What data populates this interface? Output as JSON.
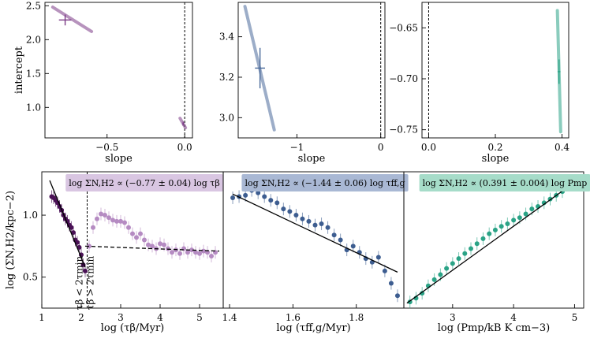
{
  "chart_data": [
    {
      "type": "scatter",
      "panel": "top-left",
      "xlabel": "slope",
      "ylabel": "intercept",
      "xlim": [
        -0.9,
        0.05
      ],
      "ylim": [
        0.55,
        2.55
      ],
      "xticks": [
        -0.5,
        0.0
      ],
      "xtick_labels": [
        "−0.5",
        "0.0"
      ],
      "yticks": [
        1.0,
        1.5,
        2.0,
        2.5
      ],
      "ytick_labels": [
        "1.0",
        "1.5",
        "2.0",
        "2.5"
      ],
      "vline": 0.0,
      "points": [
        {
          "name": "tau-beta",
          "x": -0.77,
          "y": 2.29,
          "xerr": 0.04,
          "yerr": 0.08,
          "color": "#7b3a86",
          "ellipse_line": [
            [
              -0.85,
              2.48
            ],
            [
              -0.6,
              2.12
            ]
          ]
        },
        {
          "name": "small-secondary",
          "x": -0.01,
          "y": 0.76,
          "xerr": 0.005,
          "yerr": 0.03,
          "color": "#7b3a86",
          "ellipse_line": [
            [
              -0.03,
              0.84
            ],
            [
              0.005,
              0.7
            ]
          ]
        }
      ]
    },
    {
      "type": "scatter",
      "panel": "top-middle",
      "xlabel": "slope",
      "ylabel": "",
      "xlim": [
        -1.7,
        0.05
      ],
      "ylim": [
        2.9,
        3.57
      ],
      "xticks": [
        -1,
        0
      ],
      "xtick_labels": [
        "−1",
        "0"
      ],
      "yticks": [
        3.0,
        3.2,
        3.4
      ],
      "ytick_labels": [
        "3.0",
        "3.2",
        "3.4"
      ],
      "vline": 0.0,
      "points": [
        {
          "name": "tau-ff",
          "x": -1.44,
          "y": 3.245,
          "xerr": 0.06,
          "yerr": 0.1,
          "color": "#4a6a9a",
          "ellipse_line": [
            [
              -1.62,
              3.55
            ],
            [
              -1.27,
              2.94
            ]
          ]
        }
      ]
    },
    {
      "type": "scatter",
      "panel": "top-right",
      "xlabel": "slope",
      "ylabel": "",
      "xlim": [
        -0.02,
        0.42
      ],
      "ylim": [
        -0.758,
        -0.625
      ],
      "xticks": [
        0.0,
        0.2,
        0.4
      ],
      "xtick_labels": [
        "0.0",
        "0.2",
        "0.4"
      ],
      "yticks": [
        -0.75,
        -0.7,
        -0.65
      ],
      "ytick_labels": [
        "−0.75",
        "−0.70",
        "−0.65"
      ],
      "vline": 0.0,
      "points": [
        {
          "name": "p-mp",
          "x": 0.391,
          "y": -0.693,
          "xerr": 0.004,
          "yerr": 0.012,
          "color": "#2aa386",
          "ellipse_line": [
            [
              0.386,
              -0.633
            ],
            [
              0.396,
              -0.752
            ]
          ]
        }
      ]
    },
    {
      "type": "scatter",
      "panel": "bottom-left",
      "xlabel": "log (τβ/Myr)",
      "ylabel": "log (ΣN,H2/kpc−2)",
      "xlim": [
        1.0,
        5.6
      ],
      "ylim": [
        0.25,
        1.35
      ],
      "xticks": [
        1,
        2,
        3,
        4,
        5
      ],
      "xtick_labels": [
        "1",
        "2",
        "3",
        "4",
        "5"
      ],
      "yticks": [
        0.5,
        1.0
      ],
      "ytick_labels": [
        "0.5",
        "1.0"
      ],
      "legend": "log ΣN,H2 ∝ (−0.77 ± 0.04) log τβ",
      "legend_color": "#d9c6e2",
      "annotations": [
        "τβ < 2τmin",
        "τβ > 2τmin"
      ],
      "vline": 2.15,
      "series": [
        {
          "name": "below-2tau-min",
          "color": "#4a1156",
          "x": [
            1.25,
            1.3,
            1.35,
            1.4,
            1.45,
            1.5,
            1.55,
            1.6,
            1.65,
            1.7,
            1.75,
            1.8,
            1.85,
            1.9,
            1.95,
            2.0,
            2.05,
            2.1
          ],
          "y": [
            1.15,
            1.14,
            1.12,
            1.1,
            1.07,
            1.04,
            1.0,
            0.97,
            0.95,
            0.92,
            0.9,
            0.86,
            0.8,
            0.78,
            0.74,
            0.68,
            0.6,
            0.55
          ]
        },
        {
          "name": "above-2tau-min",
          "color": "#b58bc2",
          "x": [
            2.2,
            2.3,
            2.4,
            2.5,
            2.6,
            2.7,
            2.8,
            2.9,
            3.0,
            3.1,
            3.2,
            3.3,
            3.4,
            3.5,
            3.6,
            3.7,
            3.8,
            3.9,
            4.0,
            4.1,
            4.2,
            4.3,
            4.4,
            4.5,
            4.6,
            4.7,
            4.8,
            4.9,
            5.0,
            5.1,
            5.2,
            5.3,
            5.4
          ],
          "y": [
            0.75,
            0.9,
            0.97,
            1.01,
            1.0,
            0.98,
            0.96,
            0.95,
            0.95,
            0.94,
            0.9,
            0.85,
            0.82,
            0.85,
            0.8,
            0.76,
            0.75,
            0.73,
            0.77,
            0.76,
            0.73,
            0.7,
            0.72,
            0.69,
            0.73,
            0.7,
            0.72,
            0.7,
            0.69,
            0.71,
            0.7,
            0.67,
            0.7
          ]
        }
      ],
      "fit_lines": [
        {
          "style": "solid",
          "x": [
            1.2,
            2.1
          ],
          "y": [
            1.28,
            0.58
          ]
        },
        {
          "style": "dashed",
          "x": [
            2.1,
            5.5
          ],
          "y": [
            0.75,
            0.71
          ]
        }
      ]
    },
    {
      "type": "scatter",
      "panel": "bottom-middle",
      "xlabel": "log (τff,g/Myr)",
      "ylabel": "",
      "xlim": [
        1.38,
        1.95
      ],
      "ylim": [
        0.25,
        1.35
      ],
      "xticks": [
        1.4,
        1.6,
        1.8
      ],
      "xtick_labels": [
        "1.4",
        "1.6",
        "1.8"
      ],
      "legend": "log ΣN,H2 ∝ (−1.44 ± 0.06) log τff,g",
      "legend_color": "#a9b8d4",
      "series": [
        {
          "name": "tau-ff-data",
          "color": "#3d5d90",
          "x": [
            1.41,
            1.43,
            1.45,
            1.47,
            1.49,
            1.51,
            1.53,
            1.55,
            1.57,
            1.59,
            1.61,
            1.63,
            1.65,
            1.67,
            1.69,
            1.71,
            1.73,
            1.75,
            1.77,
            1.79,
            1.81,
            1.83,
            1.85,
            1.87,
            1.89,
            1.91,
            1.93
          ],
          "y": [
            1.14,
            1.15,
            1.16,
            1.2,
            1.18,
            1.15,
            1.12,
            1.1,
            1.05,
            1.03,
            1.0,
            0.97,
            0.95,
            0.92,
            0.93,
            0.9,
            0.84,
            0.8,
            0.72,
            0.75,
            0.7,
            0.65,
            0.62,
            0.66,
            0.55,
            0.45,
            0.35
          ]
        }
      ],
      "fit_lines": [
        {
          "style": "solid",
          "x": [
            1.41,
            1.93
          ],
          "y": [
            1.17,
            0.54
          ]
        }
      ]
    },
    {
      "type": "scatter",
      "panel": "bottom-right",
      "xlabel": "log (Pmp/kB K cm−3)",
      "ylabel": "",
      "xlim": [
        2.2,
        5.15
      ],
      "ylim": [
        0.25,
        1.35
      ],
      "xticks": [
        3,
        4,
        5
      ],
      "xtick_labels": [
        "3",
        "4",
        "5"
      ],
      "legend": "log ΣN,H2 ∝ (0.391 ± 0.004) log Pmp",
      "legend_color": "#a6dcc9",
      "series": [
        {
          "name": "p-mp-data",
          "color": "#2aa386",
          "x": [
            2.3,
            2.4,
            2.5,
            2.6,
            2.7,
            2.8,
            2.9,
            3.0,
            3.1,
            3.2,
            3.3,
            3.4,
            3.5,
            3.6,
            3.7,
            3.8,
            3.9,
            4.0,
            4.1,
            4.2,
            4.3,
            4.4,
            4.5,
            4.6,
            4.7,
            4.8
          ],
          "y": [
            0.3,
            0.33,
            0.37,
            0.43,
            0.48,
            0.52,
            0.57,
            0.61,
            0.65,
            0.69,
            0.73,
            0.77,
            0.81,
            0.85,
            0.88,
            0.91,
            0.93,
            0.96,
            0.98,
            1.01,
            1.05,
            1.07,
            1.1,
            1.13,
            1.16,
            1.19
          ]
        }
      ],
      "fit_lines": [
        {
          "style": "solid",
          "x": [
            2.25,
            4.9
          ],
          "y": [
            0.29,
            1.23
          ]
        }
      ]
    }
  ]
}
